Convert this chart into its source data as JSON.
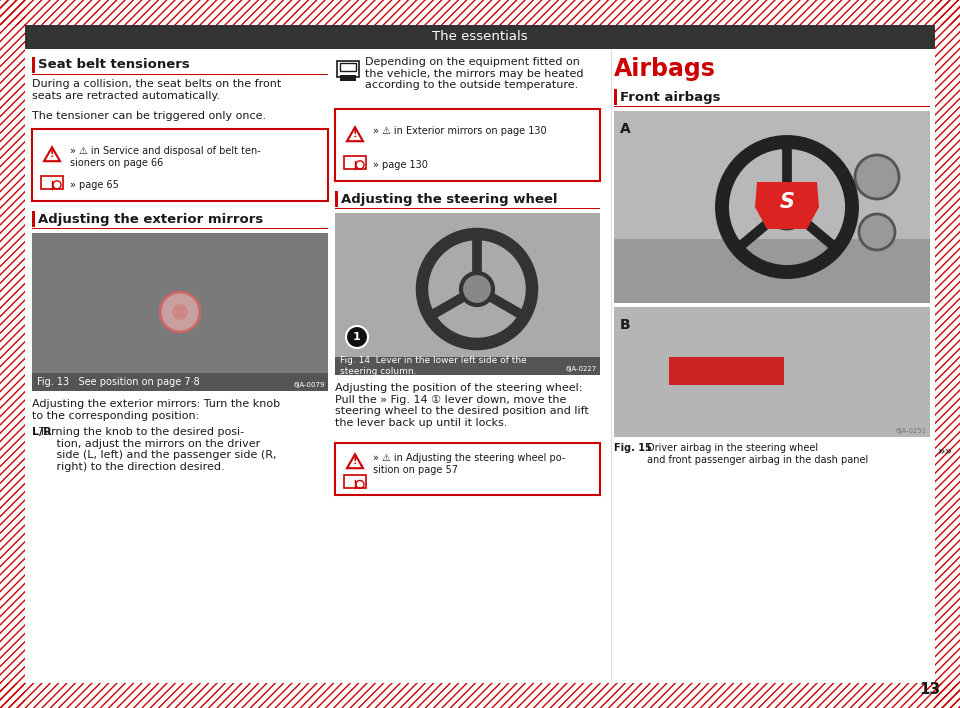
{
  "title": "The essentials",
  "title_bg": "#333333",
  "title_color": "#ffffff",
  "bg_color": "#ffffff",
  "red_color": "#cc0000",
  "dark_color": "#1a1a1a",
  "gray_img": "#999999",
  "gray_img2": "#bbbbbb",
  "gray_dark": "#555555",
  "section1_heading": "Seat belt tensioners",
  "section1_text1": "During a collision, the seat belts on the front\nseats are retracted automatically.",
  "section1_text2": "The tensioner can be triggered only once.",
  "section1_box_warn": "» ⚠ in Service and disposal of belt ten-\nsioners on page 66",
  "section1_box_page": "» page 65",
  "section2_heading": "Adjusting the exterior mirrors",
  "section2_figcap": "Fig. 13  See position on page 7·8",
  "section2_text1": "Adjusting the exterior mirrors: Turn the knob\nto the corresponding position:",
  "section2_lr": "L/R  Turning the knob to the desired posi-\n        tion, adjust the mirrors on the driver\n        side (L, left) and the passenger side (R,\n        right) to the direction desired.",
  "mid_icon_text": "Depending on the equipment fitted on\nthe vehicle, the mirrors may be heated\naccording to the outside temperature.",
  "mid_box_warn": "» ⚠ in Exterior mirrors on page 130",
  "mid_box_page": "» page 130",
  "section3_heading": "Adjusting the steering wheel",
  "section3_figcap_bold": "Fig. 14",
  "section3_figcap_rest": "  Lever in the lower left side of the\nsteering column.",
  "section3_text": "Adjusting the position of the steering wheel:\nPull the » Fig. 14 ① lever down, move the\nsteering wheel to the desired position and lift\nthe lever back up until it locks.",
  "section3_box": "» ⚠ in Adjusting the steering wheel po-\nsition on page 57",
  "right_heading": "Airbags",
  "right_sub": "Front airbags",
  "right_figcap_bold": "Fig. 15",
  "right_figcap_rest": "  Driver airbag in the steering wheel\nand front passenger airbag in the dash panel",
  "page_num": "13"
}
